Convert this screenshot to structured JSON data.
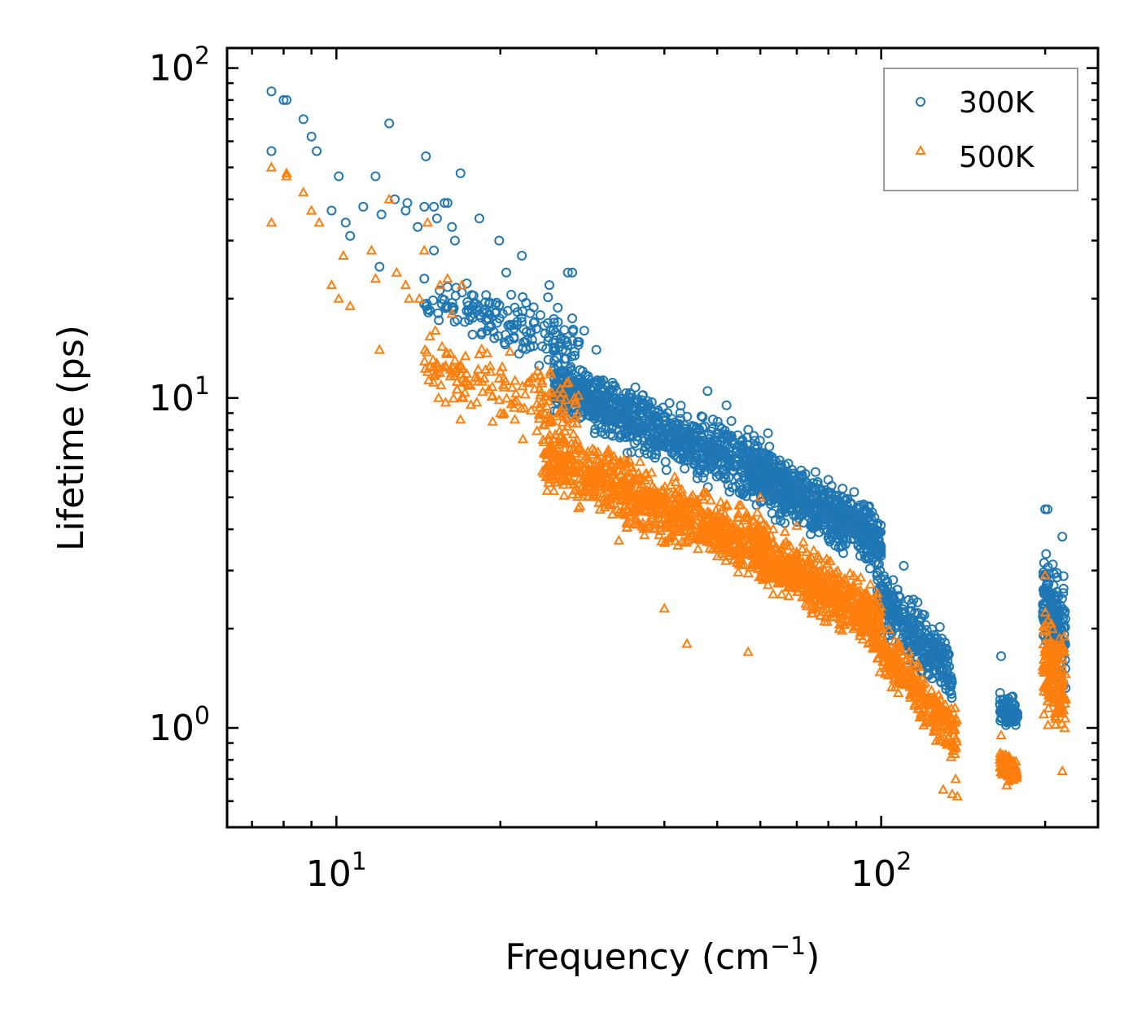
{
  "chart_data": {
    "type": "scatter",
    "xscale": "log",
    "yscale": "log",
    "xlim": [
      6.3,
      250
    ],
    "ylim": [
      0.5,
      115
    ],
    "xlabel": "Frequency (cm",
    "xlabel_sup": "−1",
    "xlabel_close": ")",
    "ylabel": "Lifetime (ps)",
    "x_major_ticks": [
      {
        "value": 10,
        "base": "10",
        "exp": "1"
      },
      {
        "value": 100,
        "base": "10",
        "exp": "2"
      }
    ],
    "y_major_ticks": [
      {
        "value": 1,
        "base": "10",
        "exp": "0"
      },
      {
        "value": 10,
        "base": "10",
        "exp": "1"
      },
      {
        "value": 100,
        "base": "10",
        "exp": "2"
      }
    ],
    "legend": {
      "position": "top-right"
    },
    "series": [
      {
        "name": "300K",
        "marker": "circle",
        "color": "#1f77b4",
        "points": [
          [
            7.6,
            85
          ],
          [
            7.6,
            56
          ],
          [
            8.0,
            80
          ],
          [
            8.1,
            80
          ],
          [
            8.7,
            70
          ],
          [
            9.0,
            62
          ],
          [
            9.2,
            56
          ],
          [
            9.8,
            37
          ],
          [
            10.1,
            47
          ],
          [
            10.4,
            34
          ],
          [
            10.6,
            31
          ],
          [
            11.2,
            38
          ],
          [
            11.8,
            47
          ],
          [
            12.0,
            25
          ],
          [
            12.1,
            36
          ],
          [
            12.5,
            68
          ],
          [
            12.8,
            40
          ],
          [
            13.4,
            37
          ],
          [
            13.5,
            39
          ],
          [
            14.1,
            33
          ],
          [
            14.5,
            38
          ],
          [
            14.5,
            23
          ],
          [
            14.6,
            54
          ],
          [
            15.1,
            38
          ],
          [
            15.1,
            28
          ],
          [
            15.3,
            35
          ],
          [
            15.8,
            39
          ],
          [
            16.0,
            39
          ],
          [
            16.3,
            33
          ],
          [
            16.5,
            30
          ],
          [
            16.9,
            48
          ],
          [
            18.3,
            35
          ],
          [
            19.9,
            30
          ],
          [
            20.5,
            24
          ],
          [
            21.9,
            27
          ],
          [
            24.6,
            22
          ],
          [
            26.6,
            24
          ],
          [
            27.1,
            24
          ],
          [
            16.0,
            19
          ],
          [
            17.2,
            17
          ],
          [
            18.9,
            16
          ],
          [
            20.2,
            18
          ],
          [
            22.4,
            15
          ],
          [
            24.7,
            16
          ],
          [
            26.0,
            14
          ],
          [
            28.5,
            16
          ],
          [
            30.0,
            14
          ]
        ],
        "bands": [
          {
            "x0": 14.5,
            "x1": 28.0,
            "y0_hi": 26.0,
            "y1_hi": 20.0,
            "y0_lo": 15.0,
            "y1_lo": 10.5,
            "n": 160
          },
          {
            "x0": 25.0,
            "x1": 62.0,
            "y0_hi": 14.0,
            "y1_hi": 8.2,
            "y0_lo": 8.5,
            "y1_lo": 4.2,
            "n": 900
          },
          {
            "x0": 58.0,
            "x1": 100.0,
            "y0_hi": 8.0,
            "y1_hi": 4.8,
            "y0_lo": 4.5,
            "y1_lo": 2.8,
            "n": 700
          },
          {
            "x0": 98.0,
            "x1": 135.0,
            "y0_hi": 3.4,
            "y1_hi": 1.9,
            "y0_lo": 1.9,
            "y1_lo": 1.1,
            "n": 320
          },
          {
            "x0": 165.0,
            "x1": 178.0,
            "y0_hi": 1.35,
            "y1_hi": 1.25,
            "y0_lo": 1.0,
            "y1_lo": 0.95,
            "n": 90
          },
          {
            "x0": 198.0,
            "x1": 218.0,
            "y0_hi": 3.8,
            "y1_hi": 3.2,
            "y0_lo": 1.6,
            "y1_lo": 1.0,
            "n": 180
          }
        ],
        "outliers": [
          [
            166.0,
            1.65
          ],
          [
            200.0,
            4.6
          ],
          [
            202.0,
            4.6
          ],
          [
            215.0,
            3.8
          ],
          [
            110.0,
            3.1
          ],
          [
            120.0,
            2.2
          ],
          [
            128.0,
            1.5
          ],
          [
            134.0,
            1.05
          ],
          [
            132.0,
            1.1
          ],
          [
            48.0,
            10.5
          ],
          [
            52.0,
            9.5
          ],
          [
            93.0,
            4.7
          ],
          [
            88.0,
            4.8
          ]
        ]
      },
      {
        "name": "500K",
        "marker": "triangle",
        "color": "#ff7f0e",
        "points": [
          [
            7.6,
            50
          ],
          [
            7.6,
            34
          ],
          [
            8.1,
            48
          ],
          [
            8.1,
            47
          ],
          [
            8.7,
            42
          ],
          [
            9.0,
            37
          ],
          [
            9.3,
            34
          ],
          [
            9.8,
            22
          ],
          [
            10.1,
            20
          ],
          [
            10.3,
            27
          ],
          [
            10.6,
            19
          ],
          [
            11.6,
            28
          ],
          [
            11.8,
            23
          ],
          [
            12.0,
            14
          ],
          [
            12.5,
            40
          ],
          [
            12.9,
            24
          ],
          [
            13.4,
            22
          ],
          [
            13.6,
            20
          ],
          [
            14.2,
            20
          ],
          [
            14.5,
            28
          ],
          [
            14.7,
            34
          ],
          [
            15.2,
            16
          ],
          [
            15.3,
            12
          ],
          [
            15.5,
            22
          ],
          [
            16.0,
            23
          ],
          [
            16.3,
            18
          ],
          [
            16.5,
            13
          ],
          [
            17.0,
            22
          ],
          [
            15.4,
            10
          ],
          [
            16.9,
            8.6
          ],
          [
            17.1,
            10
          ],
          [
            18.1,
            9.7
          ],
          [
            20.0,
            9.0
          ],
          [
            22.0,
            7.5
          ],
          [
            23.9,
            6.0
          ],
          [
            26.0,
            5.6
          ],
          [
            28.0,
            4.7
          ]
        ],
        "bands": [
          {
            "x0": 14.5,
            "x1": 28.0,
            "y0_hi": 17.0,
            "y1_hi": 13.0,
            "y0_lo": 10.0,
            "y1_lo": 6.0,
            "n": 160
          },
          {
            "x0": 24.0,
            "x1": 62.0,
            "y0_hi": 9.0,
            "y1_hi": 4.6,
            "y0_lo": 5.0,
            "y1_lo": 2.5,
            "n": 900
          },
          {
            "x0": 58.0,
            "x1": 100.0,
            "y0_hi": 4.6,
            "y1_hi": 2.8,
            "y0_lo": 2.6,
            "y1_lo": 1.6,
            "n": 700
          },
          {
            "x0": 96.0,
            "x1": 138.0,
            "y0_hi": 2.4,
            "y1_hi": 1.2,
            "y0_lo": 1.5,
            "y1_lo": 0.72,
            "n": 320
          },
          {
            "x0": 165.0,
            "x1": 178.0,
            "y0_hi": 0.9,
            "y1_hi": 0.82,
            "y0_lo": 0.7,
            "y1_lo": 0.66,
            "n": 90
          },
          {
            "x0": 198.0,
            "x1": 218.0,
            "y0_hi": 2.6,
            "y1_hi": 2.2,
            "y0_lo": 1.0,
            "y1_lo": 0.75,
            "n": 180
          }
        ],
        "outliers": [
          [
            33.0,
            3.7
          ],
          [
            40.0,
            2.3
          ],
          [
            44.0,
            1.8
          ],
          [
            57.0,
            1.7
          ],
          [
            80.0,
            2.6
          ],
          [
            135.0,
            0.63
          ],
          [
            138.0,
            0.62
          ],
          [
            130.0,
            0.65
          ],
          [
            137.0,
            0.7
          ],
          [
            200.0,
            2.9
          ],
          [
            166.0,
            0.95
          ],
          [
            170.0,
            0.67
          ],
          [
            215.0,
            0.74
          ],
          [
            60.0,
            5.0
          ],
          [
            70.0,
            4.1
          ]
        ]
      }
    ]
  }
}
